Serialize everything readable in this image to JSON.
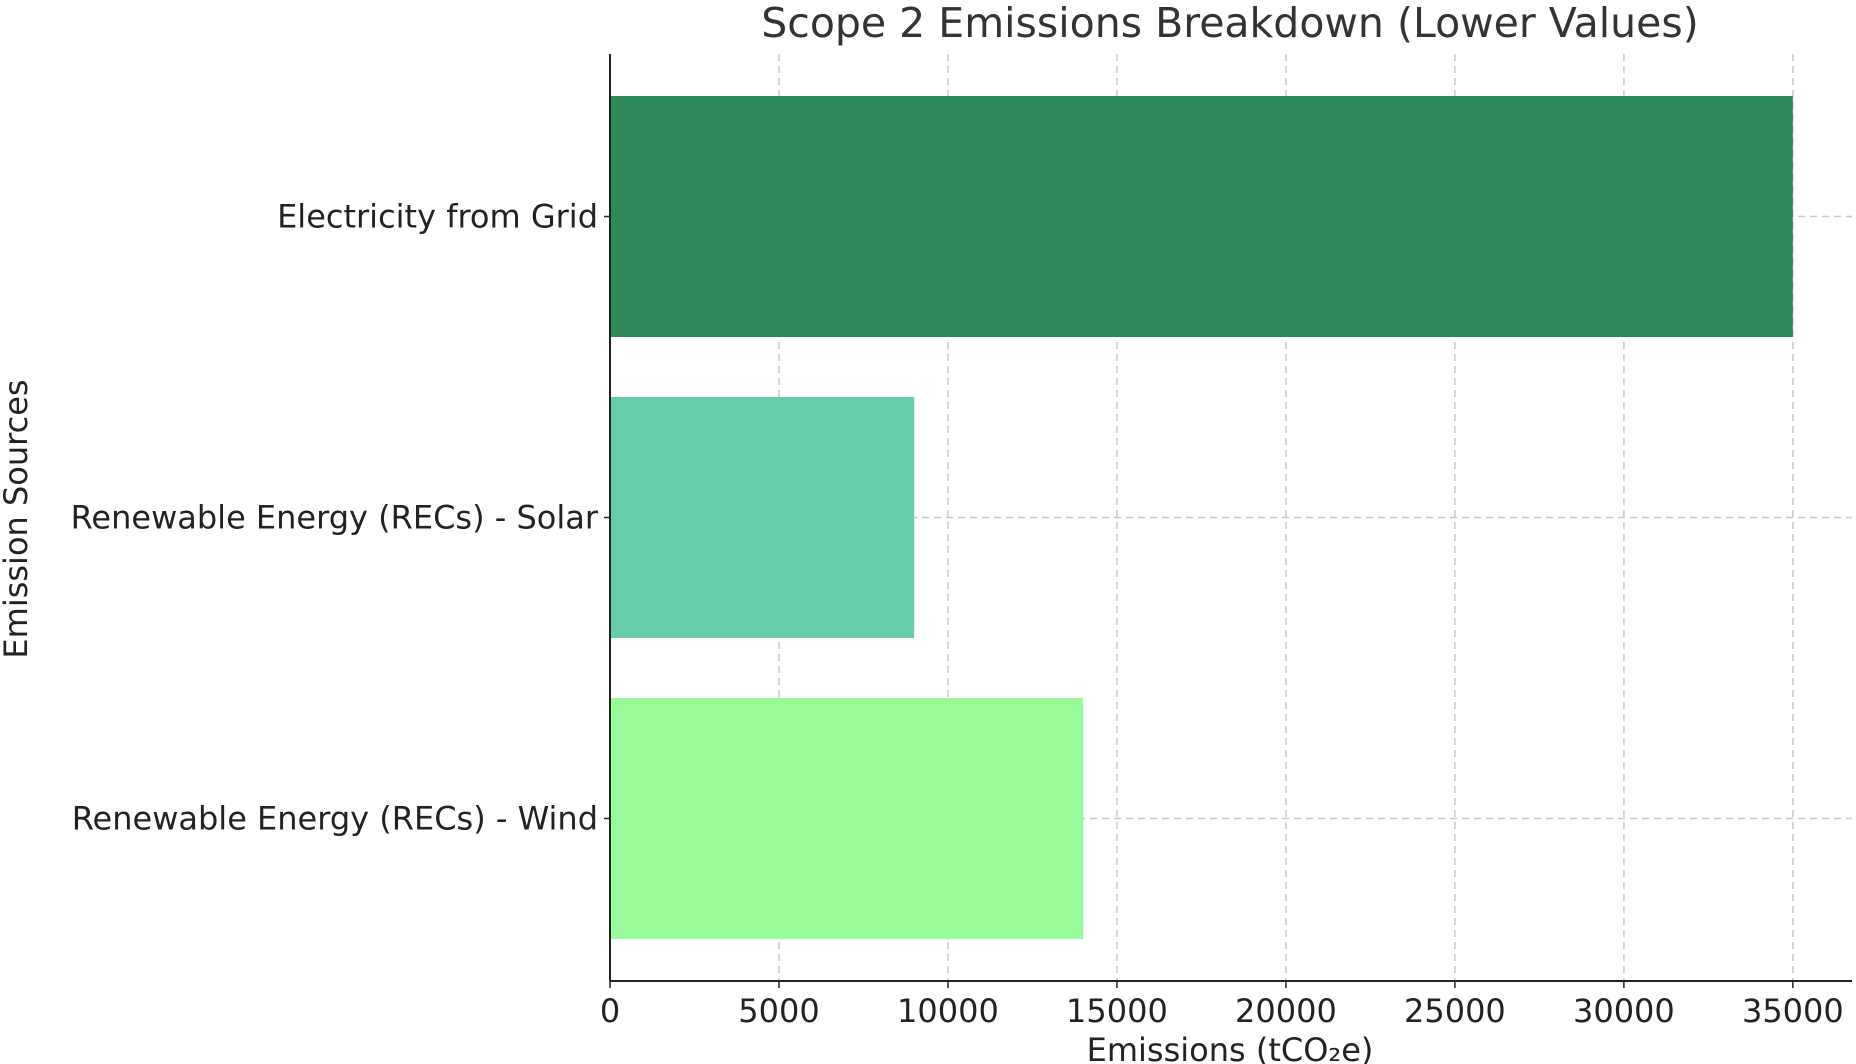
{
  "chart_data": {
    "type": "bar",
    "orientation": "horizontal",
    "title": "Scope 2 Emissions Breakdown (Lower Values)",
    "xlabel": "Emissions (tCO₂e)",
    "ylabel": "Emission Sources",
    "categories": [
      "Electricity from Grid",
      "Renewable Energy (RECs) - Solar",
      "Renewable Energy (RECs) - Wind"
    ],
    "values": [
      35000,
      9000,
      14000
    ],
    "colors": [
      "#2e8b57",
      "#66cdaa",
      "#98fb98"
    ],
    "xlim": [
      0,
      36750
    ],
    "xticks": [
      0,
      5000,
      10000,
      15000,
      20000,
      25000,
      30000,
      35000
    ],
    "grid": true
  }
}
